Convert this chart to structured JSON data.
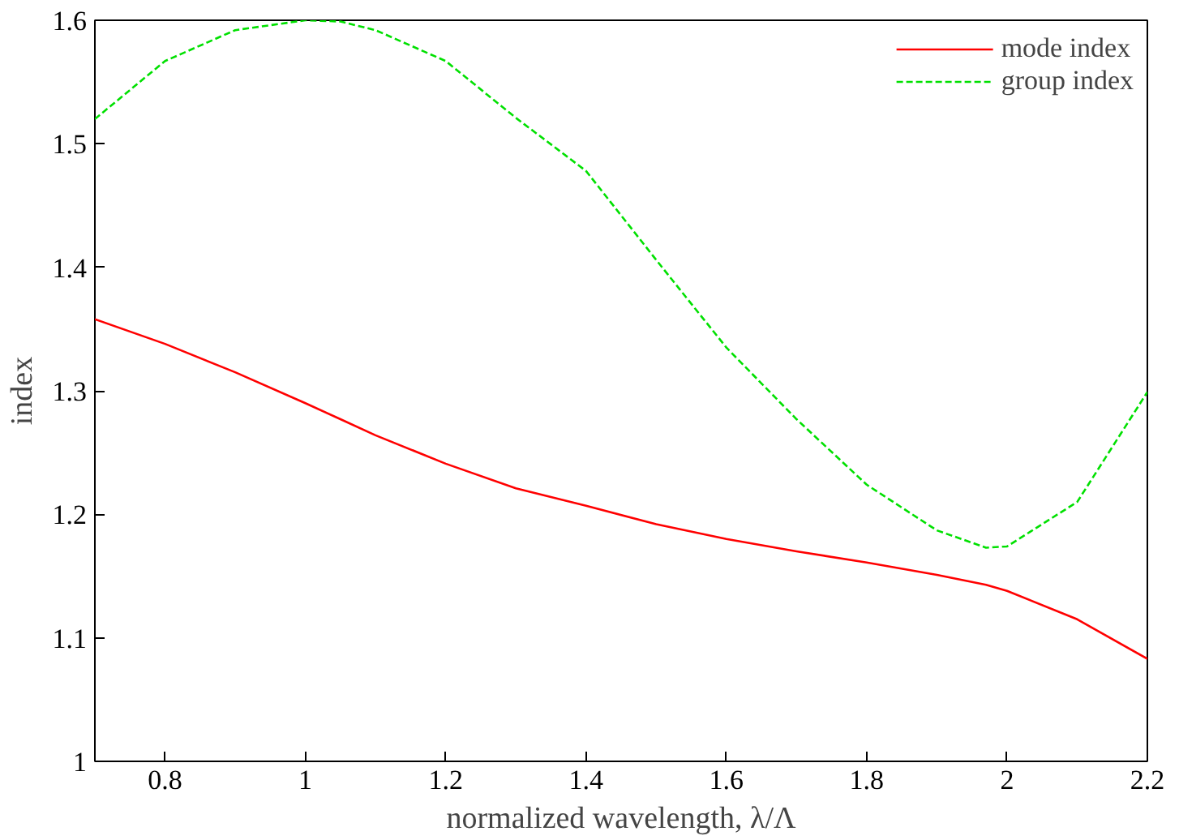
{
  "chart_data": {
    "type": "line",
    "xlabel": "normalized wavelength, λ/Λ",
    "ylabel": "index",
    "x": [
      0.7,
      0.8,
      0.9,
      1.0,
      1.05,
      1.1,
      1.2,
      1.3,
      1.4,
      1.5,
      1.6,
      1.7,
      1.8,
      1.9,
      1.97,
      2.0,
      2.1,
      2.2
    ],
    "series": [
      {
        "name": "mode index",
        "color": "#ff0000",
        "line_style": "solid",
        "values": [
          1.358,
          1.338,
          1.315,
          1.29,
          1.277,
          1.264,
          1.241,
          1.221,
          1.207,
          1.192,
          1.18,
          1.17,
          1.161,
          1.151,
          1.143,
          1.138,
          1.115,
          1.083
        ]
      },
      {
        "name": "group index",
        "color": "#00e000",
        "line_style": "dashed",
        "values": [
          1.52,
          1.567,
          1.592,
          1.6,
          1.599,
          1.592,
          1.567,
          1.521,
          1.478,
          1.406,
          1.335,
          1.277,
          1.224,
          1.187,
          1.173,
          1.174,
          1.21,
          1.299
        ]
      }
    ],
    "xlim": [
      0.7,
      2.2
    ],
    "ylim": [
      1.0,
      1.6
    ],
    "xticks": [
      0.8,
      1,
      1.2,
      1.4,
      1.6,
      1.8,
      2,
      2.2
    ],
    "yticks": [
      1,
      1.1,
      1.2,
      1.3,
      1.4,
      1.5,
      1.6
    ],
    "grid": false,
    "legend": "top right",
    "marker": "none"
  }
}
